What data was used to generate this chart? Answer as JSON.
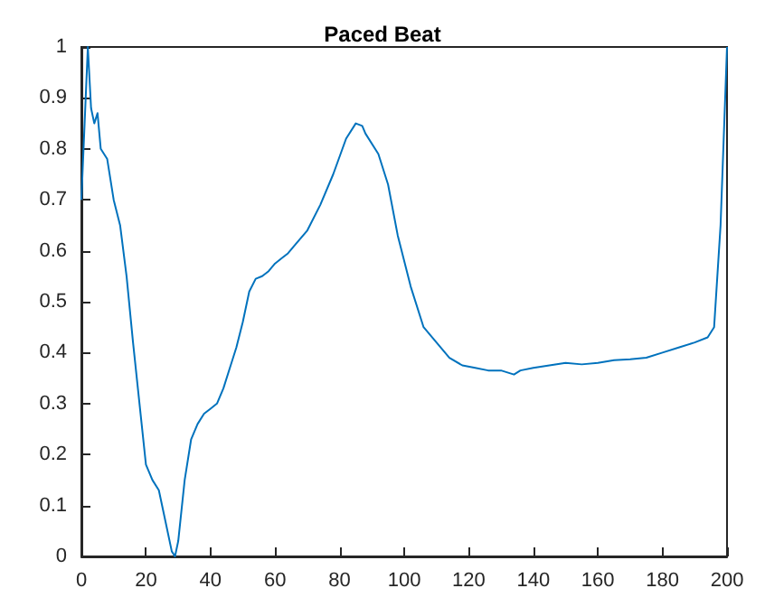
{
  "chart_data": {
    "type": "line",
    "title": "Paced Beat",
    "x": [
      0,
      1,
      2,
      3,
      4,
      5,
      6,
      8,
      10,
      12,
      14,
      16,
      18,
      20,
      22,
      24,
      26,
      28,
      29,
      30,
      32,
      34,
      36,
      38,
      40,
      42,
      44,
      46,
      48,
      50,
      52,
      54,
      56,
      58,
      60,
      62,
      64,
      66,
      70,
      74,
      78,
      82,
      85,
      87,
      88,
      92,
      95,
      98,
      102,
      106,
      110,
      114,
      118,
      122,
      126,
      130,
      134,
      136,
      140,
      145,
      150,
      155,
      160,
      165,
      170,
      175,
      180,
      185,
      190,
      194,
      196,
      198,
      200
    ],
    "series": [
      {
        "color": "#0072bd",
        "values": [
          0.7,
          0.85,
          1.0,
          0.88,
          0.85,
          0.87,
          0.8,
          0.78,
          0.7,
          0.65,
          0.55,
          0.42,
          0.3,
          0.18,
          0.15,
          0.13,
          0.07,
          0.01,
          0.0,
          0.03,
          0.15,
          0.23,
          0.26,
          0.28,
          0.29,
          0.3,
          0.33,
          0.37,
          0.41,
          0.46,
          0.52,
          0.545,
          0.55,
          0.56,
          0.575,
          0.585,
          0.595,
          0.61,
          0.64,
          0.69,
          0.75,
          0.82,
          0.85,
          0.845,
          0.83,
          0.79,
          0.73,
          0.63,
          0.53,
          0.45,
          0.42,
          0.39,
          0.375,
          0.37,
          0.365,
          0.365,
          0.357,
          0.365,
          0.37,
          0.375,
          0.38,
          0.377,
          0.38,
          0.385,
          0.387,
          0.39,
          0.4,
          0.41,
          0.42,
          0.43,
          0.45,
          0.65,
          1.0
        ]
      }
    ],
    "xlim": [
      0,
      200
    ],
    "xticks": [
      0,
      20,
      40,
      60,
      80,
      100,
      120,
      140,
      160,
      180,
      200
    ],
    "ylim": [
      0,
      1
    ],
    "yticks": [
      0,
      0.1,
      0.2,
      0.3,
      0.4,
      0.5,
      0.6,
      0.7,
      0.8,
      0.9,
      1
    ],
    "grid": false,
    "marker": "none",
    "line_style": "solid"
  }
}
